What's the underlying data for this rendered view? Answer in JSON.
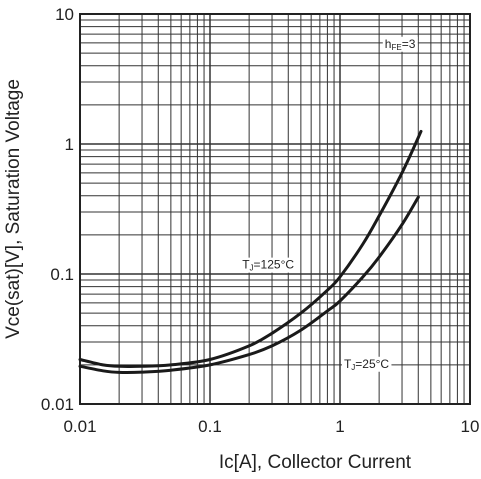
{
  "chart_data": {
    "type": "line",
    "xlabel": "Ic[A], Collector Current",
    "ylabel": "Vce(sat)[V], Saturation Voltage",
    "xscale": "log",
    "yscale": "log",
    "xlim": [
      0.01,
      10
    ],
    "ylim": [
      0.01,
      10
    ],
    "grid": true,
    "x_ticks": [
      {
        "value": 0.01,
        "label": "0.01"
      },
      {
        "value": 0.1,
        "label": "0.1"
      },
      {
        "value": 1,
        "label": "1"
      },
      {
        "value": 10,
        "label": "10"
      }
    ],
    "y_ticks": [
      {
        "value": 0.01,
        "label": "0.01"
      },
      {
        "value": 0.1,
        "label": "0.1"
      },
      {
        "value": 1,
        "label": "1"
      },
      {
        "value": 10,
        "label": "10"
      }
    ],
    "series": [
      {
        "annotation": {
          "main": "T",
          "sub": "J",
          "rest": "=125°C",
          "at": [
            0.28,
            0.11
          ]
        },
        "x": [
          0.01,
          0.015,
          0.02,
          0.03,
          0.05,
          0.1,
          0.2,
          0.3,
          0.5,
          0.8,
          1.0,
          1.5,
          2.0,
          3.0,
          4.2
        ],
        "y": [
          0.022,
          0.02,
          0.0195,
          0.0195,
          0.02,
          0.022,
          0.028,
          0.035,
          0.05,
          0.075,
          0.095,
          0.17,
          0.28,
          0.6,
          1.25
        ]
      },
      {
        "annotation": {
          "main": "T",
          "sub": "J",
          "rest": "=25°C",
          "at": [
            1.6,
            0.019
          ]
        },
        "x": [
          0.01,
          0.015,
          0.02,
          0.03,
          0.05,
          0.1,
          0.2,
          0.3,
          0.5,
          0.8,
          1.0,
          1.5,
          2.0,
          3.0,
          4.0
        ],
        "y": [
          0.0195,
          0.018,
          0.0175,
          0.0176,
          0.0182,
          0.02,
          0.024,
          0.028,
          0.037,
          0.052,
          0.062,
          0.095,
          0.135,
          0.24,
          0.39
        ]
      }
    ],
    "annotation_hfe": {
      "main": "h",
      "sub": "FE",
      "rest": "=3",
      "at": [
        2.9,
        5.5
      ]
    }
  }
}
